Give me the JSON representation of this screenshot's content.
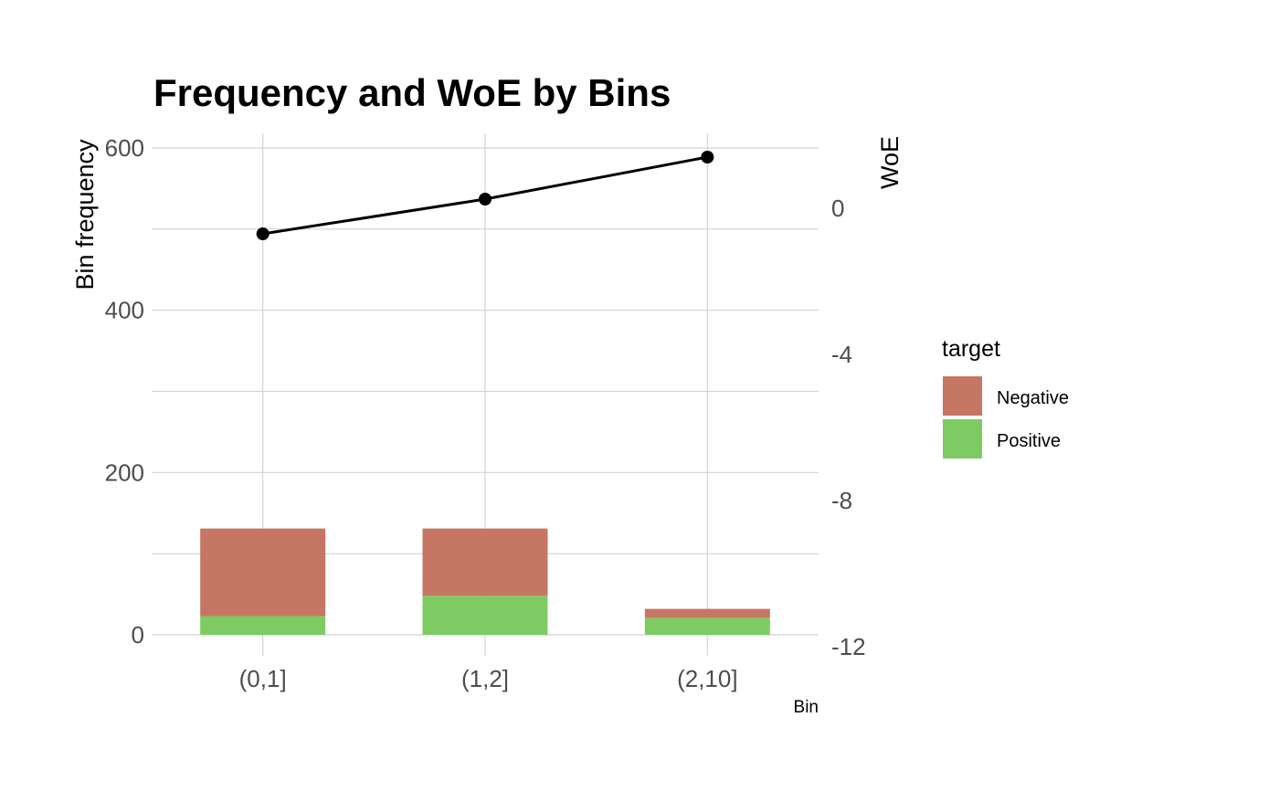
{
  "chart_data": {
    "type": "bar",
    "title": "Frequency and WoE by Bins",
    "xlabel": "Bin",
    "ylabel": "Bin frequency",
    "y2label": "WoE",
    "categories": [
      "(0,1]",
      "(1,2]",
      "(2,10]"
    ],
    "ylim": [
      0,
      600
    ],
    "y_ticks": [
      0,
      200,
      400,
      600
    ],
    "y_tick_labels": [
      "0",
      "200",
      "400",
      "600"
    ],
    "y2lim": [
      -12,
      0
    ],
    "y2_ticks": [
      0,
      -4,
      -8,
      -12
    ],
    "y2_tick_labels": [
      "0",
      "-4",
      "-8",
      "-12"
    ],
    "stacked": true,
    "grid": true,
    "legend": {
      "title": "target",
      "placement": "right",
      "entries": [
        "Negative",
        "Positive"
      ]
    },
    "series": [
      {
        "name": "Positive",
        "values": [
          23,
          48,
          21
        ],
        "color": "#7fcb63"
      },
      {
        "name": "Negative",
        "values": [
          108,
          83,
          11
        ],
        "color": "#c57664"
      }
    ],
    "line": {
      "axis": "secondary",
      "values": [
        -0.7,
        0.25,
        1.4
      ],
      "color": "#000000"
    }
  }
}
